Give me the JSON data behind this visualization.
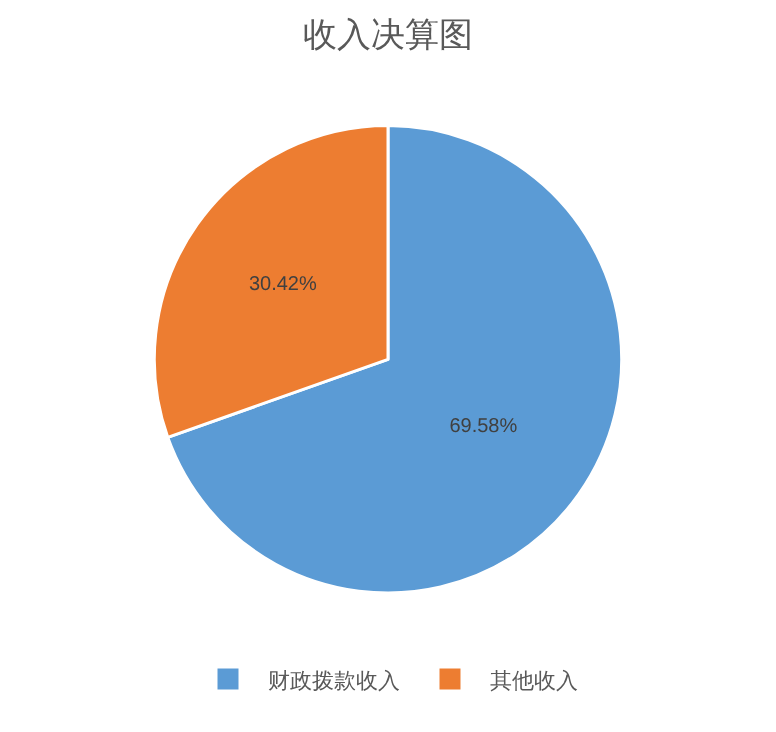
{
  "chart_data": {
    "type": "pie",
    "title": "收入决算图",
    "categories": [
      "财政拨款收入",
      "其他收入"
    ],
    "values": [
      69.58,
      30.42
    ],
    "colors": [
      "#5b9bd5",
      "#ed7d31"
    ],
    "value_labels": [
      "69.58%",
      "30.42%"
    ],
    "legend": "bottom"
  }
}
